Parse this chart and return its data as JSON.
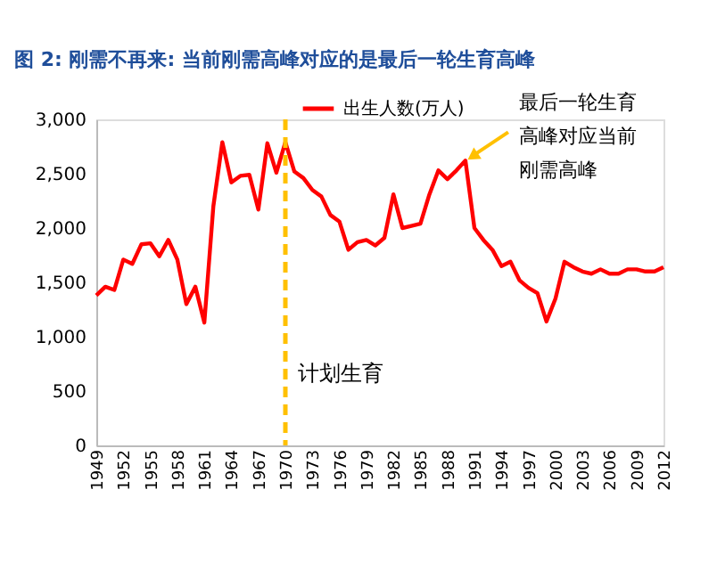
{
  "chart_data": {
    "type": "line",
    "title": "图 2: 刚需不再来: 当前刚需高峰对应的是最后一轮生育高峰",
    "x": [
      1949,
      1950,
      1951,
      1952,
      1953,
      1954,
      1955,
      1956,
      1957,
      1958,
      1959,
      1960,
      1961,
      1962,
      1963,
      1964,
      1965,
      1966,
      1967,
      1968,
      1969,
      1970,
      1971,
      1972,
      1973,
      1974,
      1975,
      1976,
      1977,
      1978,
      1979,
      1980,
      1981,
      1982,
      1983,
      1984,
      1985,
      1986,
      1987,
      1988,
      1989,
      1990,
      1991,
      1992,
      1993,
      1994,
      1995,
      1996,
      1997,
      1998,
      1999,
      2000,
      2001,
      2002,
      2003,
      2004,
      2005,
      2006,
      2007,
      2008,
      2009,
      2010,
      2011,
      2012
    ],
    "series": [
      {
        "name": "出生人数(万人)",
        "color": "#ff0000",
        "values": [
          1380,
          1460,
          1430,
          1710,
          1670,
          1850,
          1860,
          1740,
          1890,
          1710,
          1300,
          1460,
          1130,
          2200,
          2790,
          2420,
          2480,
          2490,
          2170,
          2780,
          2510,
          2790,
          2520,
          2460,
          2350,
          2290,
          2120,
          2060,
          1800,
          1870,
          1890,
          1840,
          1910,
          2310,
          2000,
          2020,
          2040,
          2310,
          2530,
          2450,
          2530,
          2620,
          2000,
          1890,
          1800,
          1650,
          1690,
          1520,
          1450,
          1400,
          1140,
          1350,
          1690,
          1640,
          1600,
          1580,
          1620,
          1580,
          1580,
          1620,
          1620,
          1600,
          1600,
          1640
        ]
      }
    ],
    "xlim": [
      1949,
      2012
    ],
    "xticks": [
      1949,
      1952,
      1955,
      1958,
      1961,
      1964,
      1967,
      1970,
      1973,
      1976,
      1979,
      1982,
      1985,
      1988,
      1991,
      1994,
      1997,
      2000,
      2003,
      2006,
      2009,
      2012
    ],
    "ylim": [
      0,
      3000
    ],
    "yticks": [
      0,
      500,
      {
        "value": 1000,
        "label": "1,000"
      },
      {
        "value": 1500,
        "label": "1,500"
      },
      {
        "value": 2000,
        "label": "2,000"
      },
      {
        "value": 2500,
        "label": "2,500"
      },
      {
        "value": 3000,
        "label": "3,000"
      }
    ],
    "ref_lines": [
      {
        "axis": "x",
        "value": 1970,
        "label": "计划生育",
        "color": "#ffc000",
        "line_style": "dashed"
      }
    ],
    "annotations": [
      {
        "text": "最后一轮生育高峰对应当前刚需高峰",
        "x": 1990,
        "y": 2620
      }
    ],
    "legend": "top",
    "grid": false,
    "marker": "none",
    "line_style": "solid"
  }
}
